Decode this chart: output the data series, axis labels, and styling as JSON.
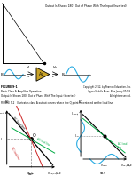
{
  "bg_color": "#ffffff",
  "top_text": "Output Is Shown 180° Out of Phase With The Input (Inverted)",
  "book_info_left_line1": "FIGURE 9-1",
  "book_info_left_line2": "Basic Class A Amplifier Operation.",
  "book_info_left_line3": "Output Is Shown 180° Out of Phase With The Input (Inverted)",
  "book_info_right_line1": "Copyright 2012, by Pearson Education, Inc.",
  "book_info_right_line2": "Upper Saddle River, New Jersey 07458",
  "book_info_right_line3": "All rights reserved.",
  "fig92_caption": "FIGURE 9-2   Illustrates class A output curves where the Q point is centered on the load line.",
  "sine_color": "#29abe2",
  "amp_color": "#c8a228",
  "black": "#000000",
  "red_color": "#cc2222",
  "green_color": "#00aa44",
  "gray_color": "#888888"
}
